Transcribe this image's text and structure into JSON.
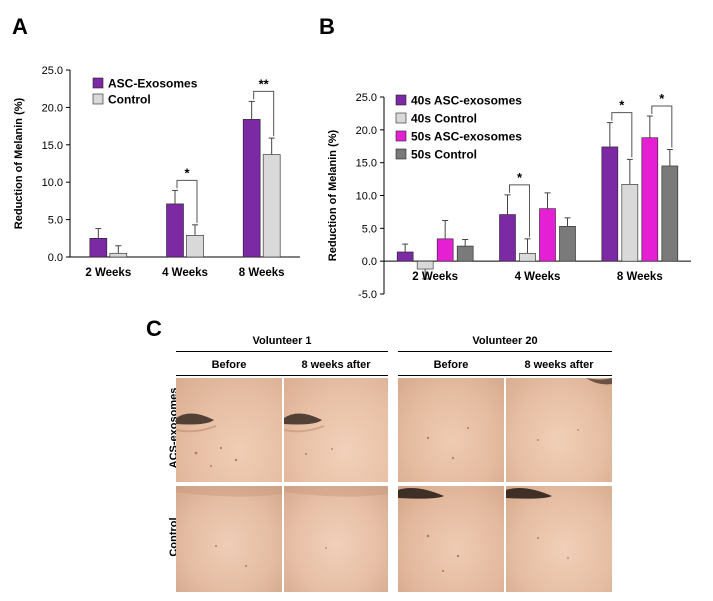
{
  "panels": {
    "a": "A",
    "b": "B",
    "c": "C"
  },
  "colors": {
    "purple": "#7b2aa4",
    "light_gray": "#d9d9d9",
    "magenta": "#e51fd3",
    "dark_gray": "#7a7a7a",
    "skin": "#e9c2a9"
  },
  "chart_data": [
    {
      "type": "bar",
      "ylabel": "Reduction of Melanin (%)",
      "ylim": [
        0,
        25
      ],
      "yticks": [
        "0.0",
        "5.0",
        "10.0",
        "15.0",
        "20.0",
        "25.0"
      ],
      "legend_position": "top-left",
      "categories": [
        "2 Weeks",
        "4 Weeks",
        "8 Weeks"
      ],
      "series": [
        {
          "name": "ASC-Exosomes",
          "color": "#7b2aa4",
          "values": [
            2.5,
            7.1,
            18.4
          ],
          "errors": [
            1.3,
            1.8,
            2.4
          ]
        },
        {
          "name": "Control",
          "color": "#d9d9d9",
          "values": [
            0.5,
            2.9,
            13.7
          ],
          "errors": [
            1.0,
            1.4,
            2.2
          ]
        }
      ],
      "significance": [
        {
          "category": 1,
          "label": "*"
        },
        {
          "category": 2,
          "label": "**"
        }
      ]
    },
    {
      "type": "bar",
      "ylabel": "Reduction of Melanin (%)",
      "ylim": [
        -5,
        25
      ],
      "yticks": [
        "-5.0",
        "0.0",
        "5.0",
        "10.0",
        "15.0",
        "20.0",
        "25.0"
      ],
      "legend_position": "top-left",
      "categories": [
        "2 Weeks",
        "4 Weeks",
        "8 Weeks"
      ],
      "series": [
        {
          "name": "40s ASC-exosomes",
          "color": "#7b2aa4",
          "values": [
            1.4,
            7.1,
            17.4
          ],
          "errors": [
            1.2,
            3.0,
            3.7
          ]
        },
        {
          "name": "40s Control",
          "color": "#d9d9d9",
          "values": [
            -1.2,
            1.2,
            11.7
          ],
          "errors": [
            1.5,
            2.2,
            3.8
          ]
        },
        {
          "name": "50s ASC-exosomes",
          "color": "#e51fd3",
          "values": [
            3.4,
            8.0,
            18.8
          ],
          "errors": [
            2.8,
            2.4,
            3.3
          ]
        },
        {
          "name": "50s Control",
          "color": "#7a7a7a",
          "values": [
            2.3,
            5.3,
            14.5
          ],
          "errors": [
            1.0,
            1.3,
            2.5
          ]
        }
      ],
      "significance": [
        {
          "category": 1,
          "from": 0,
          "to": 1,
          "label": "*"
        },
        {
          "category": 2,
          "from": 0,
          "to": 1,
          "label": "*"
        },
        {
          "category": 2,
          "from": 2,
          "to": 3,
          "label": "*"
        }
      ]
    }
  ],
  "panel_c": {
    "volunteers": [
      "Volunteer 1",
      "Volunteer 20"
    ],
    "columns": [
      "Before",
      "8 weeks after",
      "Before",
      "8 weeks after"
    ],
    "rows": [
      "ACS-exosomes",
      "Control"
    ]
  }
}
